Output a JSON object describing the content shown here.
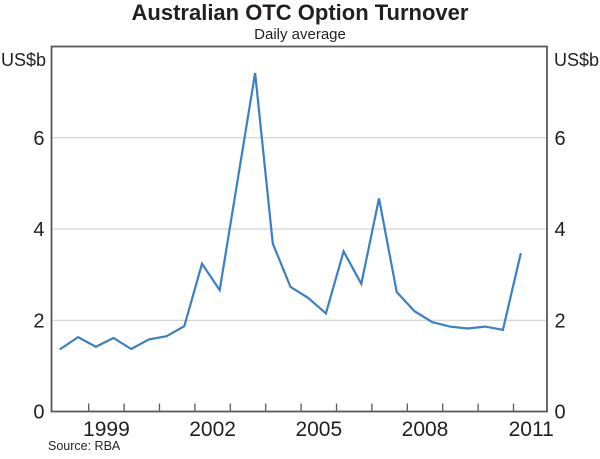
{
  "chart": {
    "title": "Australian OTC Option Turnover",
    "subtitle": "Daily average",
    "y_unit_left": "US$b",
    "y_unit_right": "US$b",
    "source": "Source: RBA",
    "colors": {
      "line": "#3b7fc4",
      "axis": "#58595b",
      "grid": "#c8c9ca",
      "text": "#231f20"
    }
  },
  "chart_data": {
    "type": "line",
    "title": "Australian OTC Option Turnover",
    "subtitle": "Daily average",
    "ylabel": "US$b",
    "xlabel": "",
    "ylim": [
      0,
      8
    ],
    "y_ticks": [
      0,
      2,
      4,
      6
    ],
    "gridlines": [
      2,
      4,
      6
    ],
    "grid": "horizontal-only",
    "legend": "none",
    "x_minor_tick_years": [
      1999,
      2000,
      2001,
      2002,
      2003,
      2004,
      2005,
      2006,
      2007,
      2008,
      2009,
      2010,
      2011
    ],
    "x_labeled_years": [
      1999,
      2002,
      2005,
      2008,
      2011
    ],
    "xlim_years": [
      1997.95,
      2011.95
    ],
    "series": [
      {
        "name": "Australian OTC option turnover (daily average, US$b)",
        "points": [
          [
            1998.2,
            1.37
          ],
          [
            1998.7,
            1.63
          ],
          [
            1999.2,
            1.42
          ],
          [
            1999.7,
            1.61
          ],
          [
            2000.2,
            1.37
          ],
          [
            2000.7,
            1.58
          ],
          [
            2001.2,
            1.65
          ],
          [
            2001.7,
            1.87
          ],
          [
            2002.2,
            3.24
          ],
          [
            2002.7,
            2.66
          ],
          [
            2003.7,
            7.42
          ],
          [
            2004.2,
            3.68
          ],
          [
            2004.7,
            2.73
          ],
          [
            2005.2,
            2.49
          ],
          [
            2005.7,
            2.15
          ],
          [
            2006.2,
            3.51
          ],
          [
            2006.7,
            2.8
          ],
          [
            2007.2,
            4.67
          ],
          [
            2007.7,
            2.62
          ],
          [
            2008.2,
            2.2
          ],
          [
            2008.7,
            1.96
          ],
          [
            2009.2,
            1.86
          ],
          [
            2009.7,
            1.82
          ],
          [
            2010.2,
            1.86
          ],
          [
            2010.7,
            1.79
          ],
          [
            2011.2,
            3.45
          ]
        ]
      }
    ]
  }
}
